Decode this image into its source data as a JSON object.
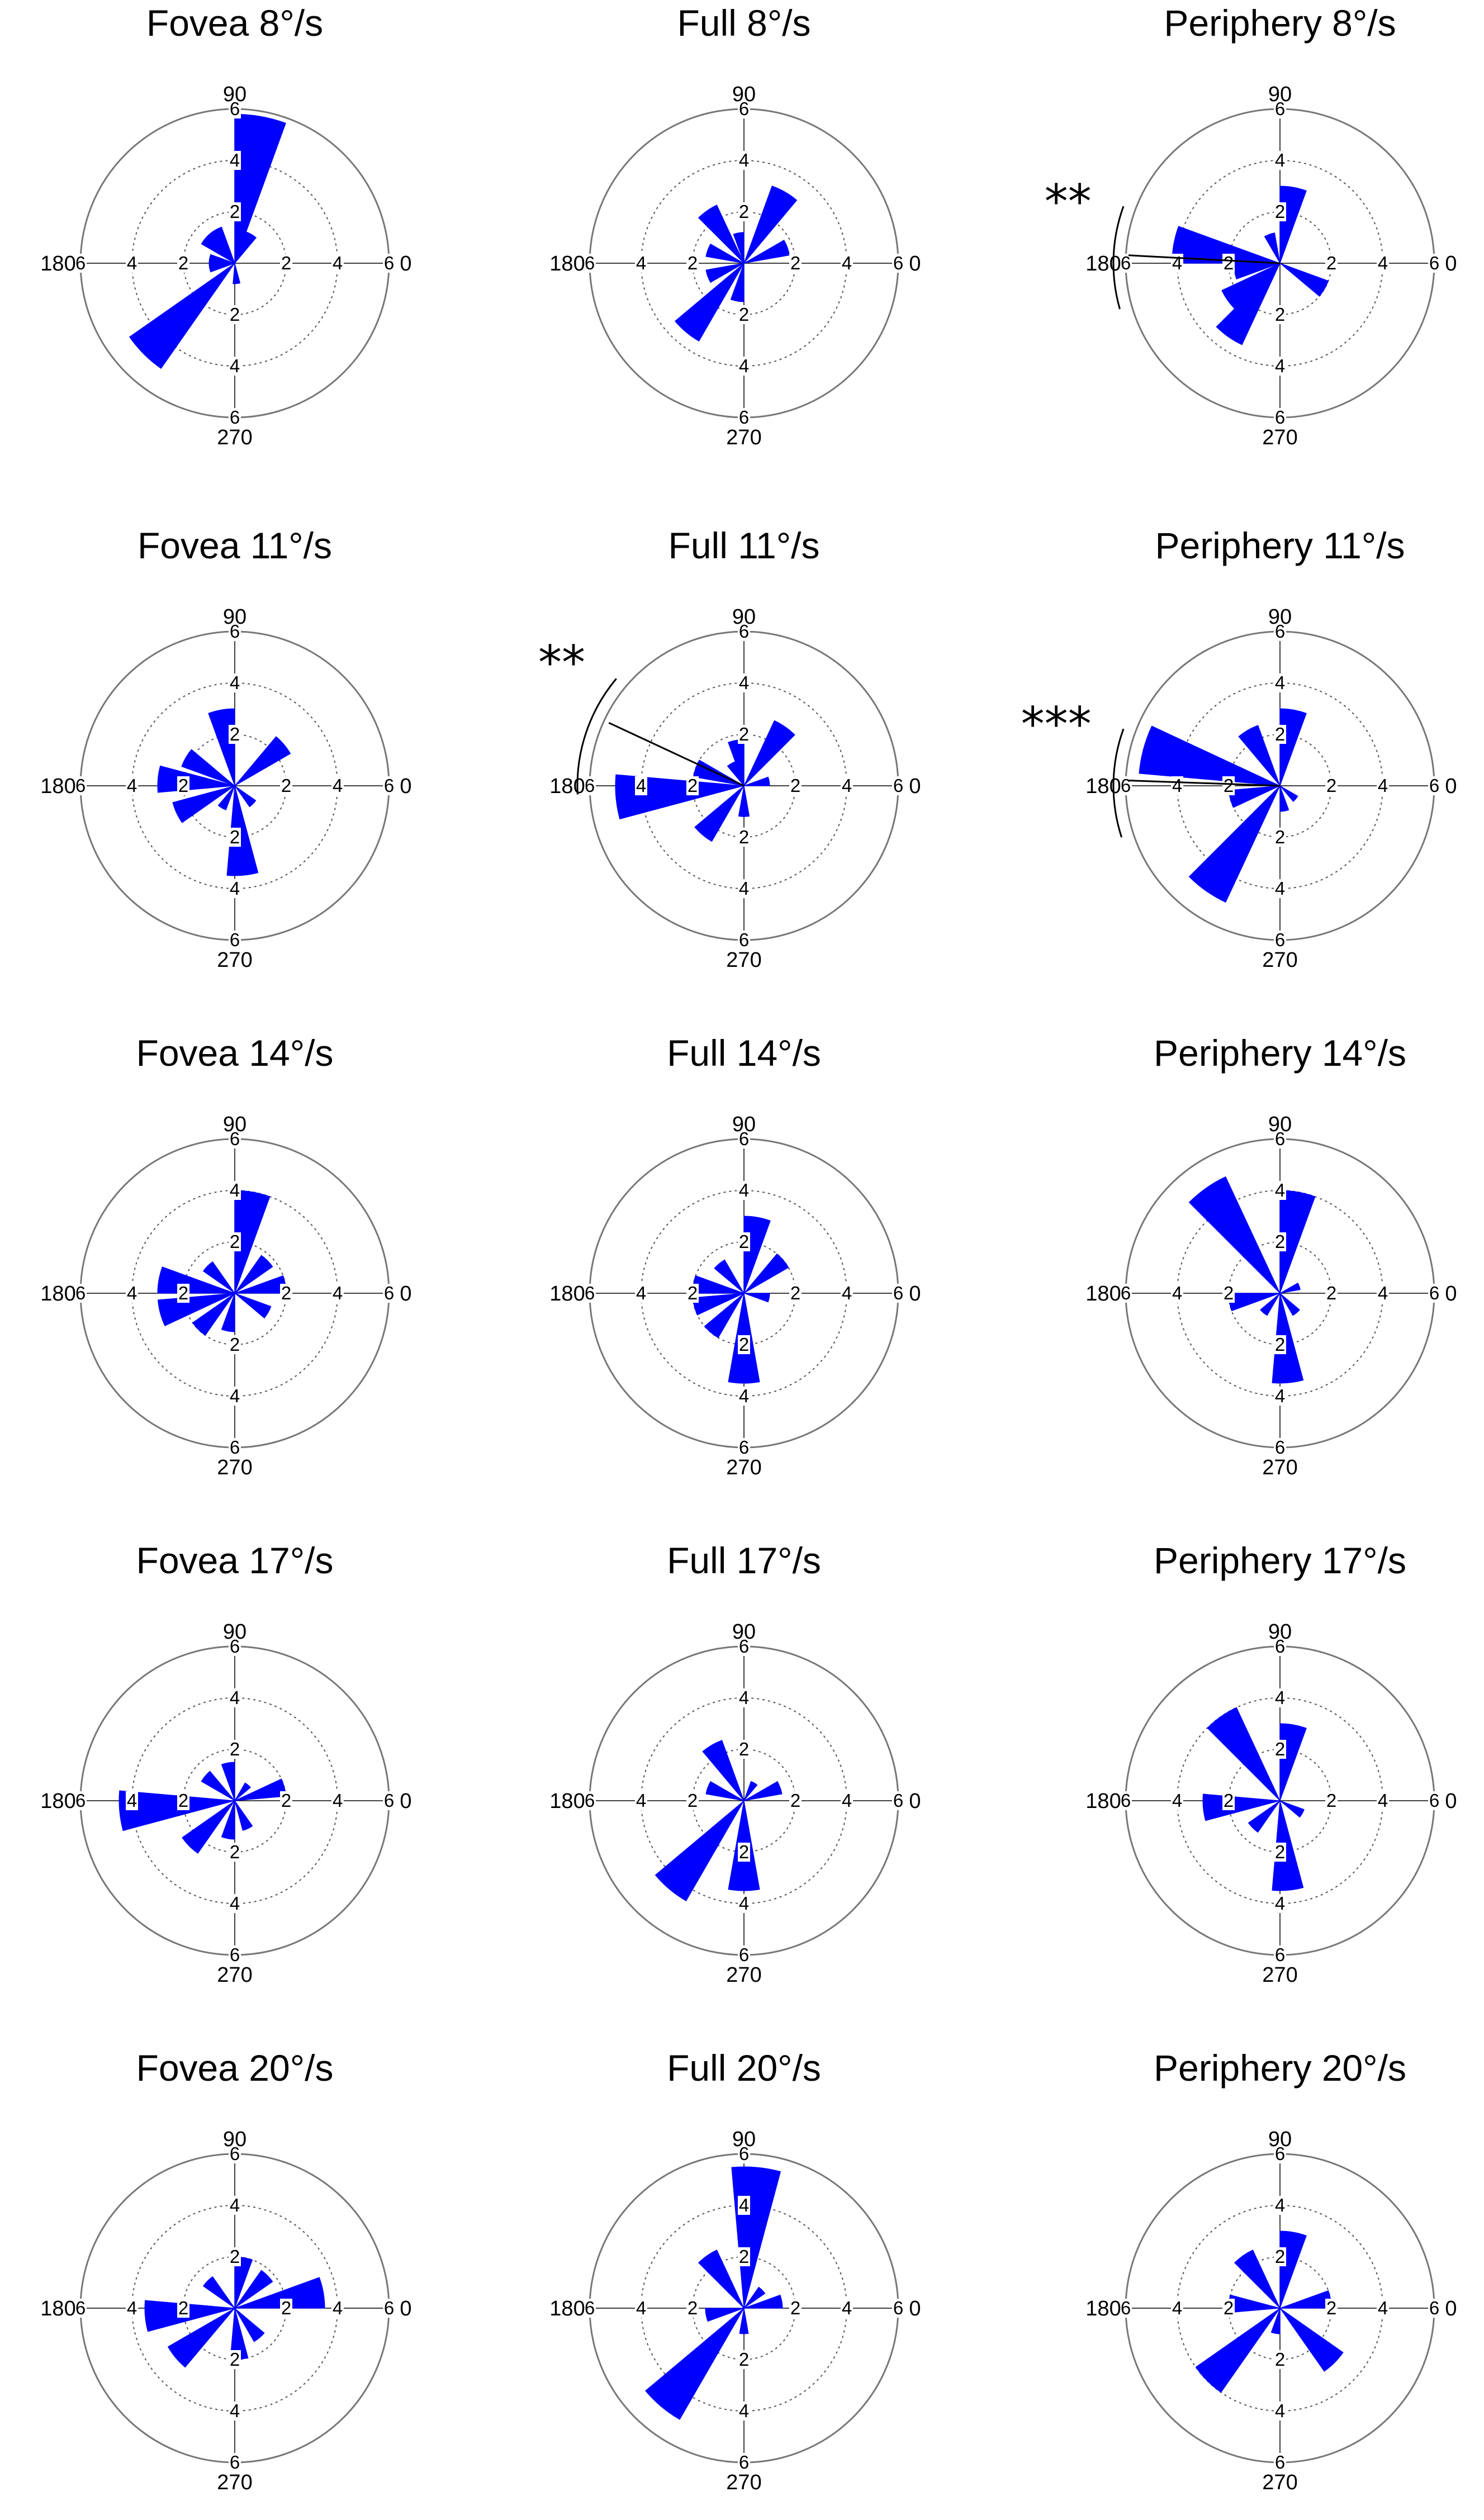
{
  "figure": {
    "rlim": [
      0,
      6
    ],
    "ring_ticks": [
      2,
      4,
      6
    ],
    "bin_width_deg": 20,
    "bar_color": "#0000FF",
    "angle_labels": {
      "right": "0",
      "top": "90",
      "left": "180",
      "bottom": "270"
    }
  },
  "chart_data": [
    {
      "type": "polar-histogram",
      "title": "Fovea 8°/s",
      "bins": [
        {
          "angle": 80,
          "value": 5.8
        },
        {
          "angle": 60,
          "value": 1.3
        },
        {
          "angle": 120,
          "value": 1.5
        },
        {
          "angle": 140,
          "value": 1.5
        },
        {
          "angle": 190,
          "value": 1.0
        },
        {
          "angle": 170,
          "value": 1.0
        },
        {
          "angle": 225,
          "value": 5.0
        },
        {
          "angle": 275,
          "value": 0.8
        }
      ]
    },
    {
      "type": "polar-histogram",
      "title": "Full 8°/s",
      "bins": [
        {
          "angle": 60,
          "value": 3.2
        },
        {
          "angle": 100,
          "value": 1.2
        },
        {
          "angle": 125,
          "value": 2.5
        },
        {
          "angle": 20,
          "value": 1.8
        },
        {
          "angle": 160,
          "value": 1.5
        },
        {
          "angle": 200,
          "value": 1.5
        },
        {
          "angle": 230,
          "value": 3.5
        },
        {
          "angle": 260,
          "value": 1.5
        }
      ]
    },
    {
      "type": "polar-histogram",
      "title": "Periphery  8°/s",
      "bins": [
        {
          "angle": 80,
          "value": 3.0
        },
        {
          "angle": 110,
          "value": 1.2
        },
        {
          "angle": 170,
          "value": 4.2
        },
        {
          "angle": 190,
          "value": 1.8
        },
        {
          "angle": 215,
          "value": 2.5
        },
        {
          "angle": 235,
          "value": 3.5
        },
        {
          "angle": 330,
          "value": 2.0
        }
      ],
      "mean_vector": {
        "angle": 177,
        "length": 5.9
      },
      "arc": [
        160,
        196
      ],
      "significance": "**"
    },
    {
      "type": "polar-histogram",
      "title": "Fovea 11°/s",
      "bins": [
        {
          "angle": 100,
          "value": 3.0
        },
        {
          "angle": 40,
          "value": 2.5
        },
        {
          "angle": 150,
          "value": 2.2
        },
        {
          "angle": 175,
          "value": 3.0
        },
        {
          "angle": 205,
          "value": 2.5
        },
        {
          "angle": 240,
          "value": 1.0
        },
        {
          "angle": 275,
          "value": 3.5
        },
        {
          "angle": 315,
          "value": 1.0
        }
      ]
    },
    {
      "type": "polar-histogram",
      "title": "Full 11°/s",
      "bins": [
        {
          "angle": 55,
          "value": 2.8
        },
        {
          "angle": 100,
          "value": 1.8
        },
        {
          "angle": 120,
          "value": 1.0
        },
        {
          "angle": 160,
          "value": 2.0
        },
        {
          "angle": 185,
          "value": 5.0
        },
        {
          "angle": 230,
          "value": 2.5
        },
        {
          "angle": 270,
          "value": 1.2
        },
        {
          "angle": 10,
          "value": 1.0
        }
      ],
      "mean_vector": {
        "angle": 155,
        "length": 5.8
      },
      "arc": [
        140,
        183
      ],
      "significance": "**"
    },
    {
      "type": "polar-histogram",
      "title": "Periphery  11°/s",
      "bins": [
        {
          "angle": 80,
          "value": 3.0
        },
        {
          "angle": 120,
          "value": 2.5
        },
        {
          "angle": 165,
          "value": 5.5
        },
        {
          "angle": 195,
          "value": 2.0
        },
        {
          "angle": 235,
          "value": 5.0
        },
        {
          "angle": 280,
          "value": 1.0
        },
        {
          "angle": 320,
          "value": 0.8
        }
      ],
      "mean_vector": {
        "angle": 178,
        "length": 5.9
      },
      "arc": [
        160,
        198
      ],
      "significance": "***"
    },
    {
      "type": "polar-histogram",
      "title": "Fovea 14°/s",
      "bins": [
        {
          "angle": 80,
          "value": 4.0
        },
        {
          "angle": 45,
          "value": 1.8
        },
        {
          "angle": 135,
          "value": 1.5
        },
        {
          "angle": 170,
          "value": 3.0
        },
        {
          "angle": 195,
          "value": 3.0
        },
        {
          "angle": 225,
          "value": 2.0
        },
        {
          "angle": 260,
          "value": 1.5
        },
        {
          "angle": 10,
          "value": 2.0
        },
        {
          "angle": 330,
          "value": 1.5
        }
      ]
    },
    {
      "type": "polar-histogram",
      "title": "Full 14°/s",
      "bins": [
        {
          "angle": 80,
          "value": 3.0
        },
        {
          "angle": 40,
          "value": 2.0
        },
        {
          "angle": 130,
          "value": 1.5
        },
        {
          "angle": 170,
          "value": 2.0
        },
        {
          "angle": 195,
          "value": 2.0
        },
        {
          "angle": 230,
          "value": 2.0
        },
        {
          "angle": 270,
          "value": 3.5
        },
        {
          "angle": 350,
          "value": 1.0
        }
      ]
    },
    {
      "type": "polar-histogram",
      "title": "Periphery  14°/s",
      "bins": [
        {
          "angle": 80,
          "value": 4.0
        },
        {
          "angle": 125,
          "value": 5.0
        },
        {
          "angle": 190,
          "value": 2.0
        },
        {
          "angle": 230,
          "value": 1.0
        },
        {
          "angle": 275,
          "value": 3.5
        },
        {
          "angle": 310,
          "value": 1.0
        },
        {
          "angle": 20,
          "value": 0.8
        }
      ]
    },
    {
      "type": "polar-histogram",
      "title": "Fovea 17°/s",
      "bins": [
        {
          "angle": 100,
          "value": 1.5
        },
        {
          "angle": 140,
          "value": 1.5
        },
        {
          "angle": 185,
          "value": 4.5
        },
        {
          "angle": 225,
          "value": 2.5
        },
        {
          "angle": 260,
          "value": 1.5
        },
        {
          "angle": 295,
          "value": 1.2
        },
        {
          "angle": 15,
          "value": 2.0
        },
        {
          "angle": 50,
          "value": 0.8
        }
      ]
    },
    {
      "type": "polar-histogram",
      "title": "Full 17°/s",
      "bins": [
        {
          "angle": 120,
          "value": 2.5
        },
        {
          "angle": 160,
          "value": 1.5
        },
        {
          "angle": 230,
          "value": 4.5
        },
        {
          "angle": 270,
          "value": 3.5
        },
        {
          "angle": 20,
          "value": 1.5
        },
        {
          "angle": 60,
          "value": 0.8
        }
      ]
    },
    {
      "type": "polar-histogram",
      "title": "Periphery  17°/s",
      "bins": [
        {
          "angle": 80,
          "value": 3.0
        },
        {
          "angle": 125,
          "value": 4.0
        },
        {
          "angle": 185,
          "value": 3.0
        },
        {
          "angle": 225,
          "value": 1.5
        },
        {
          "angle": 275,
          "value": 3.5
        },
        {
          "angle": 330,
          "value": 1.0
        }
      ]
    },
    {
      "type": "polar-histogram",
      "title": "Fovea 20°/s",
      "bins": [
        {
          "angle": 80,
          "value": 2.0
        },
        {
          "angle": 45,
          "value": 1.8
        },
        {
          "angle": 135,
          "value": 1.5
        },
        {
          "angle": 185,
          "value": 3.5
        },
        {
          "angle": 220,
          "value": 3.0
        },
        {
          "angle": 275,
          "value": 2.0
        },
        {
          "angle": 10,
          "value": 3.5
        },
        {
          "angle": 310,
          "value": 1.5
        }
      ]
    },
    {
      "type": "polar-histogram",
      "title": "Full 20°/s",
      "bins": [
        {
          "angle": 85,
          "value": 5.5
        },
        {
          "angle": 125,
          "value": 2.5
        },
        {
          "angle": 230,
          "value": 5.0
        },
        {
          "angle": 190,
          "value": 1.5
        },
        {
          "angle": 10,
          "value": 1.5
        },
        {
          "angle": 270,
          "value": 1.0
        },
        {
          "angle": 45,
          "value": 1.0
        }
      ]
    },
    {
      "type": "polar-histogram",
      "title": "Periphery  20°/s",
      "bins": [
        {
          "angle": 80,
          "value": 3.0
        },
        {
          "angle": 125,
          "value": 2.5
        },
        {
          "angle": 175,
          "value": 2.0
        },
        {
          "angle": 225,
          "value": 4.0
        },
        {
          "angle": 260,
          "value": 1.0
        },
        {
          "angle": 315,
          "value": 3.0
        },
        {
          "angle": 10,
          "value": 2.0
        }
      ]
    }
  ]
}
